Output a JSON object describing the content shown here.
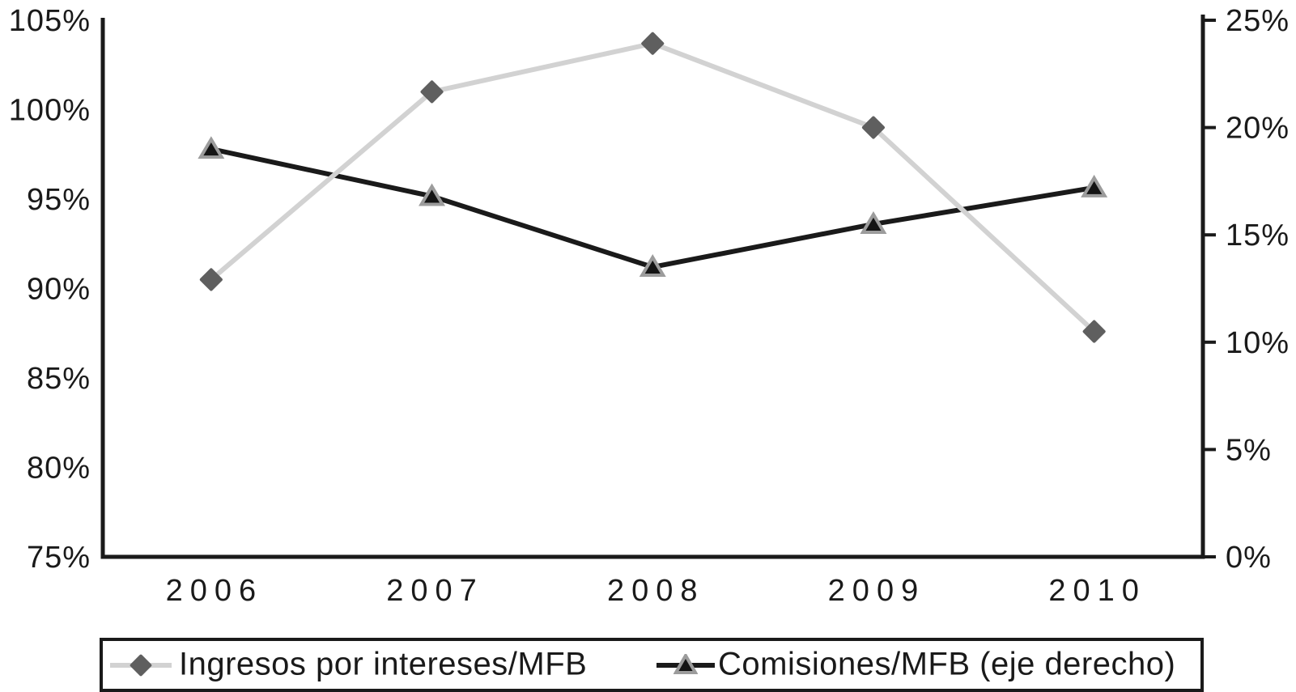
{
  "chart_data": {
    "type": "line",
    "title": "",
    "categories": [
      "2006",
      "2007",
      "2008",
      "2009",
      "2010"
    ],
    "series": [
      {
        "name": "Ingresos por intereses/MFB",
        "axis": "left",
        "values": [
          90.5,
          101.0,
          103.7,
          99.0,
          87.6
        ],
        "line_color": "#d2d2d2",
        "marker": "diamond",
        "marker_color": "#5f5f5f"
      },
      {
        "name": "Comisiones/MFB (eje derecho)",
        "axis": "right",
        "values": [
          19.0,
          16.8,
          13.5,
          15.5,
          17.2
        ],
        "line_color": "#1a1a1a",
        "marker": "triangle",
        "marker_color": "#141414",
        "marker_stroke": "#9c9c9c"
      }
    ],
    "left_axis": {
      "min": 75,
      "max": 105,
      "tick_step": 5,
      "tick_labels": [
        "105%",
        "100%",
        "95%",
        "90%",
        "85%",
        "80%",
        "75%"
      ]
    },
    "right_axis": {
      "min": 0,
      "max": 25,
      "tick_step": 5,
      "tick_labels": [
        "25%",
        "20%",
        "15%",
        "10%",
        "5%",
        "0%"
      ]
    },
    "grid": false,
    "legend_position": "bottom"
  },
  "colors": {
    "axis": "#1a1a1a",
    "background": "#ffffff",
    "series1_line": "#d2d2d2",
    "series1_marker": "#5f5f5f",
    "series2_line": "#1a1a1a",
    "series2_marker_fill": "#141414",
    "series2_marker_stroke": "#9c9c9c"
  }
}
